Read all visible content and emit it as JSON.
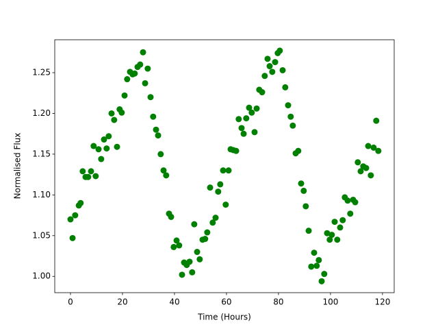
{
  "chart_data": {
    "type": "scatter",
    "x_label": "Time (Hours)",
    "y_label": "Normalised Flux",
    "color": "#008000",
    "x": [
      0,
      0.8,
      1.8,
      3.2,
      3.9,
      4.7,
      5.8,
      6.8,
      7.9,
      8.9,
      9.7,
      10.8,
      11.8,
      12.9,
      13.9,
      14.7,
      15.8,
      16.8,
      17.9,
      18.9,
      19.7,
      20.8,
      21.8,
      22.9,
      23.9,
      24.7,
      25.8,
      26.8,
      27.9,
      28.7,
      29.7,
      30.8,
      31.8,
      32.9,
      33.7,
      34.7,
      35.8,
      36.8,
      37.9,
      38.7,
      39.7,
      40.8,
      41.8,
      42.9,
      43.7,
      44.7,
      45.8,
      46.8,
      47.6,
      48.7,
      49.7,
      50.8,
      51.8,
      52.6,
      53.7,
      54.7,
      55.8,
      56.8,
      57.6,
      58.7,
      59.7,
      60.8,
      61.6,
      62.6,
      63.7,
      64.7,
      65.8,
      66.6,
      67.6,
      68.7,
      69.7,
      70.8,
      71.6,
      72.6,
      73.7,
      74.7,
      75.8,
      76.6,
      77.6,
      78.7,
      79.7,
      80.5,
      81.6,
      82.6,
      83.7,
      84.7,
      85.5,
      86.6,
      87.6,
      88.7,
      89.7,
      90.5,
      91.6,
      92.6,
      93.7,
      94.7,
      95.5,
      96.6,
      97.6,
      98.7,
      99.7,
      100.5,
      101.6,
      102.6,
      103.7,
      104.7,
      105.5,
      106.6,
      107.6,
      108.7,
      109.5,
      110.5,
      111.6,
      112.6,
      113.7,
      114.5,
      115.5,
      116.6,
      117.6,
      118.4
    ],
    "y": [
      1.07,
      1.047,
      1.075,
      1.087,
      1.09,
      1.129,
      1.122,
      1.122,
      1.129,
      1.16,
      1.123,
      1.156,
      1.144,
      1.168,
      1.157,
      1.172,
      1.2,
      1.192,
      1.159,
      1.205,
      1.201,
      1.222,
      1.242,
      1.251,
      1.248,
      1.249,
      1.257,
      1.26,
      1.275,
      1.237,
      1.255,
      1.22,
      1.196,
      1.18,
      1.173,
      1.15,
      1.13,
      1.124,
      1.077,
      1.073,
      1.036,
      1.044,
      1.038,
      1.002,
      1.017,
      1.014,
      1.018,
      1.005,
      1.064,
      1.03,
      1.021,
      1.045,
      1.046,
      1.054,
      1.109,
      1.066,
      1.072,
      1.104,
      1.113,
      1.13,
      1.088,
      1.13,
      1.156,
      1.155,
      1.154,
      1.193,
      1.182,
      1.175,
      1.194,
      1.207,
      1.201,
      1.177,
      1.206,
      1.229,
      1.226,
      1.246,
      1.267,
      1.258,
      1.251,
      1.263,
      1.274,
      1.277,
      1.253,
      1.232,
      1.21,
      1.196,
      1.185,
      1.151,
      1.154,
      1.114,
      1.105,
      1.086,
      1.056,
      1.012,
      1.029,
      1.013,
      1.02,
      0.994,
      1.003,
      1.053,
      1.045,
      1.051,
      1.067,
      1.045,
      1.06,
      1.069,
      1.097,
      1.093,
      1.077,
      1.094,
      1.091,
      1.14,
      1.129,
      1.135,
      1.133,
      1.16,
      1.124,
      1.158,
      1.191,
      1.154
    ],
    "xlim": [
      -6.05,
      124.5
    ],
    "ylim": [
      0.98,
      1.2904
    ],
    "xticks": [
      0,
      20,
      40,
      60,
      80,
      100,
      120
    ],
    "yticks": [
      {
        "value": 1.0,
        "label": "1.00"
      },
      1.05,
      {
        "value": 1.1,
        "label": "1.10"
      },
      1.15,
      {
        "value": 1.2,
        "label": "1.20"
      },
      1.25
    ]
  }
}
